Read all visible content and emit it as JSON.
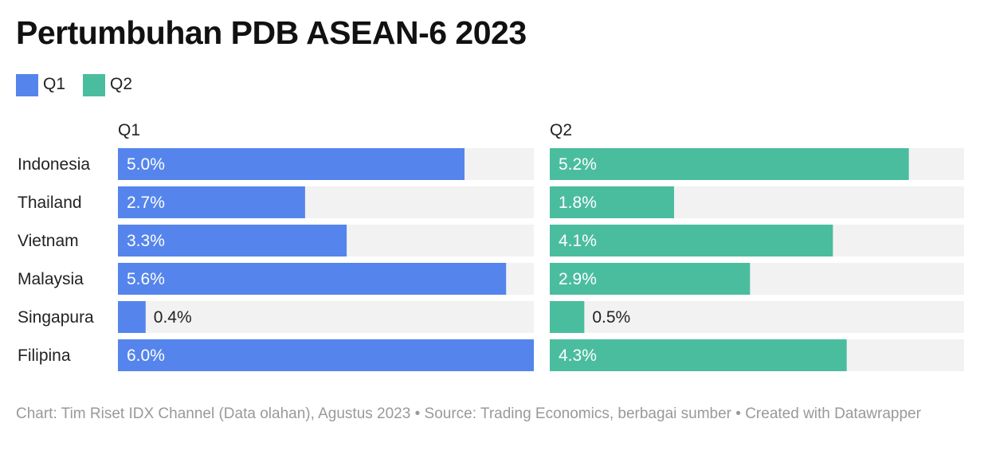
{
  "title": "Pertumbuhan PDB ASEAN-6 2023",
  "legend": [
    {
      "label": "Q1",
      "color": "#5585ec"
    },
    {
      "label": "Q2",
      "color": "#4bbd9f"
    }
  ],
  "chart_data": {
    "type": "bar",
    "orientation": "horizontal",
    "layout": "split-panels",
    "title": "Pertumbuhan PDB ASEAN-6 2023",
    "categories": [
      "Indonesia",
      "Thailand",
      "Vietnam",
      "Malaysia",
      "Singapura",
      "Filipina"
    ],
    "xlim": [
      0,
      6.0
    ],
    "grid": false,
    "legend_position": "top-left",
    "background_track_color": "#f2f2f2",
    "series": [
      {
        "name": "Q1",
        "color": "#5585ec",
        "values": [
          5.0,
          2.7,
          3.3,
          5.6,
          0.4,
          6.0
        ],
        "labels": [
          "5.0%",
          "2.7%",
          "3.3%",
          "5.6%",
          "0.4%",
          "6.0%"
        ]
      },
      {
        "name": "Q2",
        "color": "#4bbd9f",
        "values": [
          5.2,
          1.8,
          4.1,
          2.9,
          0.5,
          4.3
        ],
        "labels": [
          "5.2%",
          "1.8%",
          "4.1%",
          "2.9%",
          "0.5%",
          "4.3%"
        ]
      }
    ]
  },
  "footer": "Chart: Tim Riset IDX Channel (Data olahan), Agustus 2023 • Source: Trading Economics, berbagai sumber • Created with Datawrapper"
}
